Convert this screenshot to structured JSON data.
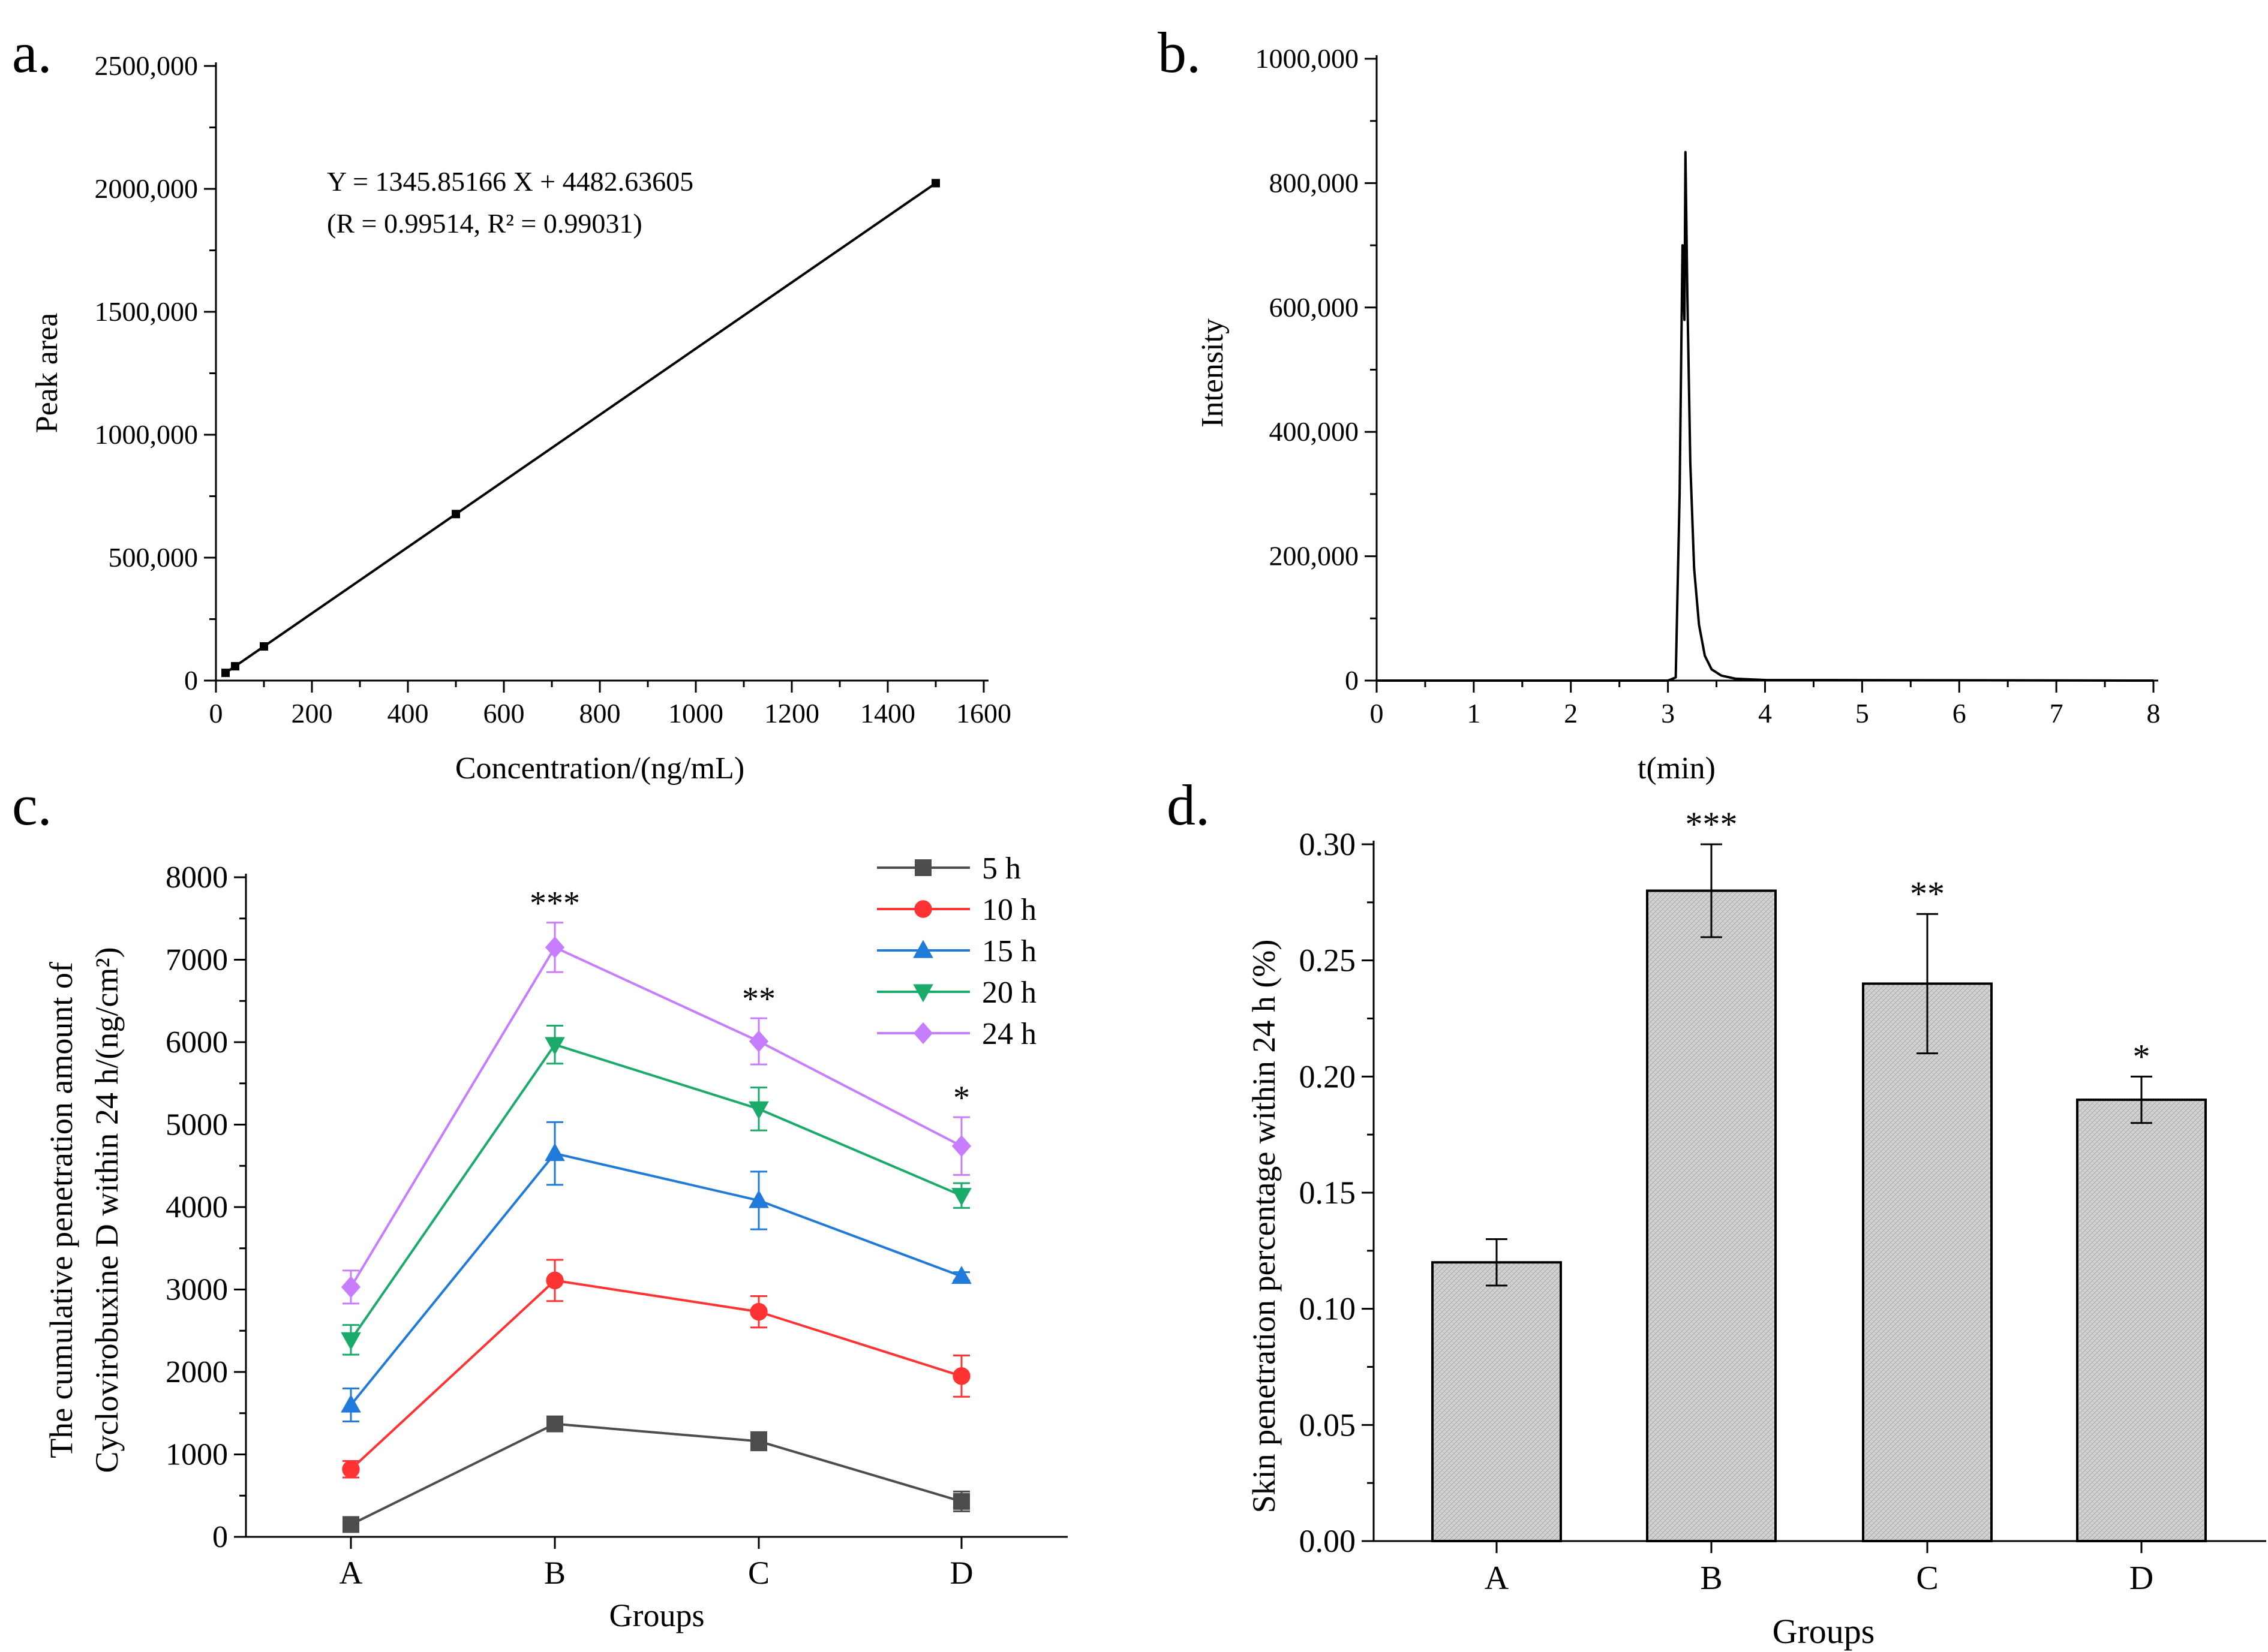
{
  "chart_data": [
    {
      "panel": "a.",
      "type": "scatter",
      "title": "",
      "xlabel": "Concentration/(ng/mL)",
      "ylabel": "Peak area",
      "xlim": [
        0,
        1600
      ],
      "ylim": [
        0,
        2500000
      ],
      "xticks": [
        0,
        200,
        400,
        600,
        800,
        1000,
        1200,
        1400,
        1600
      ],
      "xtick_labels": [
        "0",
        "200",
        "400",
        "600",
        "800",
        "1000",
        "1200",
        "1400",
        "1600"
      ],
      "yticks": [
        0,
        500000,
        1000000,
        1500000,
        2000000,
        2500000
      ],
      "ytick_labels": [
        "0",
        "500,000",
        "1000,000",
        "1500,000",
        "2000,000",
        "2500,000"
      ],
      "points": {
        "x": [
          20,
          40,
          100,
          500,
          1500
        ],
        "y": [
          31400,
          58300,
          139100,
          677400,
          2023300
        ]
      },
      "fit": {
        "slope": 1345.85166,
        "intercept": 4482.63605,
        "x_range": [
          20,
          1500
        ]
      },
      "annotations": [
        "Y = 1345.85166 X + 4482.63605",
        "(R = 0.99514, R² = 0.99031)"
      ],
      "color": "#000000"
    },
    {
      "panel": "b.",
      "type": "line",
      "title": "",
      "xlabel": "t(min)",
      "ylabel": "Intensity",
      "xlim": [
        0,
        8
      ],
      "ylim": [
        0,
        1000000
      ],
      "xticks": [
        0,
        1,
        2,
        3,
        4,
        5,
        6,
        7,
        8
      ],
      "xtick_labels": [
        "0",
        "1",
        "2",
        "3",
        "4",
        "5",
        "6",
        "7",
        "8"
      ],
      "yticks": [
        0,
        200000,
        400000,
        600000,
        800000,
        1000000
      ],
      "ytick_labels": [
        "0",
        "200,000",
        "400,000",
        "600,000",
        "800,000",
        "1000,000"
      ],
      "x": [
        0,
        3.0,
        3.08,
        3.12,
        3.15,
        3.17,
        3.18,
        3.2,
        3.23,
        3.27,
        3.32,
        3.38,
        3.45,
        3.55,
        3.7,
        4.0,
        8.0
      ],
      "y": [
        0,
        0,
        5000,
        300000,
        700000,
        580000,
        850000,
        620000,
        350000,
        180000,
        90000,
        40000,
        18000,
        8000,
        3000,
        1000,
        0
      ],
      "color": "#000000"
    },
    {
      "panel": "c.",
      "type": "line",
      "title": "",
      "xlabel": "Groups",
      "ylabel": [
        "The cumulative penetration amount of",
        "Cyclovirobuxine D within 24 h/(ng/cm²)"
      ],
      "categories": [
        "A",
        "B",
        "C",
        "D"
      ],
      "ylim": [
        0,
        8000
      ],
      "yticks": [
        0,
        1000,
        2000,
        3000,
        4000,
        5000,
        6000,
        7000,
        8000
      ],
      "ytick_labels": [
        "0",
        "1000",
        "2000",
        "3000",
        "4000",
        "5000",
        "6000",
        "7000",
        "8000"
      ],
      "legend_position": "top-right",
      "series": [
        {
          "name": "5 h",
          "marker": "square",
          "color": "#4d4d4d",
          "values": [
            150,
            1370,
            1160,
            430
          ],
          "errors": [
            40,
            80,
            110,
            120
          ]
        },
        {
          "name": "10 h",
          "marker": "circle",
          "color": "#ff3333",
          "values": [
            820,
            3110,
            2730,
            1950
          ],
          "errors": [
            100,
            250,
            190,
            250
          ]
        },
        {
          "name": "15 h",
          "marker": "triangle-up",
          "color": "#1f7ad9",
          "values": [
            1600,
            4650,
            4080,
            3160
          ],
          "errors": [
            200,
            380,
            350,
            50
          ]
        },
        {
          "name": "20 h",
          "marker": "triangle-down",
          "color": "#1aaa6a",
          "values": [
            2390,
            5970,
            5190,
            4140
          ],
          "errors": [
            180,
            230,
            260,
            150
          ]
        },
        {
          "name": "24 h",
          "marker": "diamond",
          "color": "#c77dff",
          "values": [
            3030,
            7150,
            6010,
            4740
          ],
          "errors": [
            200,
            300,
            280,
            350
          ]
        }
      ],
      "significance": [
        {
          "category": "B",
          "label": "***",
          "value": 7450
        },
        {
          "category": "C",
          "label": "**",
          "value": 6290
        },
        {
          "category": "D",
          "label": "*",
          "value": 5090
        }
      ]
    },
    {
      "panel": "d.",
      "type": "bar",
      "title": "",
      "xlabel": "Groups",
      "ylabel": "Skin penetration percentage within 24 h (%)",
      "categories": [
        "A",
        "B",
        "C",
        "D"
      ],
      "values": [
        0.12,
        0.28,
        0.24,
        0.19
      ],
      "errors": [
        0.01,
        0.02,
        0.03,
        0.01
      ],
      "ylim": [
        0,
        0.3
      ],
      "yticks": [
        0,
        0.05,
        0.1,
        0.15,
        0.2,
        0.25,
        0.3
      ],
      "ytick_labels": [
        "0.00",
        "0.05",
        "0.10",
        "0.15",
        "0.20",
        "0.25",
        "0.30"
      ],
      "significance": [
        "",
        "***",
        "**",
        "*"
      ],
      "bar_color": "#d2d2d2"
    }
  ]
}
